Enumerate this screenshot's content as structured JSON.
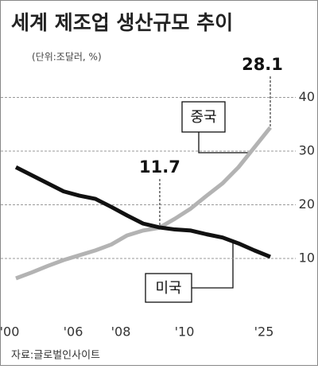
{
  "chart_data": {
    "type": "line",
    "title": "세계 제조업 생산규모 추이",
    "subtitle": "(단위:조달러, %)",
    "source": "자료:글로벌인사이트",
    "categories": [
      "'00",
      null,
      null,
      null,
      "'06",
      null,
      null,
      "'08",
      null,
      null,
      null,
      "'10",
      null,
      null,
      null,
      null,
      "'25"
    ],
    "series": [
      {
        "name": "중국",
        "color": "#b3b3b3",
        "values": [
          6.3,
          7.4,
          8.6,
          9.7,
          10.6,
          11.5,
          12.6,
          14.3,
          15.2,
          15.7,
          17.4,
          19.3,
          21.7,
          24.0,
          27.0,
          30.7,
          34.4
        ]
      },
      {
        "name": "미국",
        "color": "#111111",
        "values": [
          27.0,
          25.5,
          24.0,
          22.5,
          21.7,
          21.1,
          19.6,
          18.0,
          16.5,
          15.8,
          15.4,
          15.2,
          14.5,
          13.9,
          12.8,
          11.5,
          10.3
        ]
      }
    ],
    "annotations": [
      {
        "value": 28.1,
        "label": "28.1"
      },
      {
        "value": 11.7,
        "label": "11.7"
      }
    ],
    "ylim": [
      0,
      48
    ],
    "yticks": [
      10,
      20,
      30,
      40
    ],
    "grid": true
  }
}
